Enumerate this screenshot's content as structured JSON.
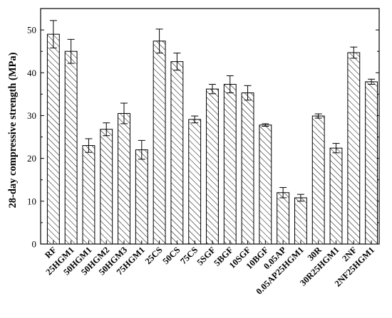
{
  "chart_data": {
    "type": "bar",
    "title": "",
    "xlabel": "",
    "ylabel": "28-day compressive strength (MPa)",
    "ylim": [
      0,
      55
    ],
    "yticks": [
      0,
      10,
      20,
      30,
      40,
      50
    ],
    "grid": false,
    "legend": "none",
    "bar_fill": "hatched-diagonal",
    "bar_color": "#ffffff",
    "edge_color": "#000000",
    "categories": [
      "RF",
      "25HGM1",
      "50HGM1",
      "50HGM2",
      "50HGM3",
      "75HGM1",
      "25CS",
      "50CS",
      "75CS",
      "5SGF",
      "5BGF",
      "10SGF",
      "10BGF",
      "0.05AP",
      "0.05AP25HGM1",
      "30R",
      "30R25HGM1",
      "2NF",
      "2NF25HGM1"
    ],
    "values": [
      49.0,
      45.0,
      23.0,
      26.8,
      30.5,
      22.0,
      47.4,
      42.6,
      29.1,
      36.2,
      37.3,
      35.3,
      27.8,
      12.0,
      10.8,
      29.9,
      22.4,
      44.7,
      37.9
    ],
    "errors": [
      3.2,
      2.8,
      1.6,
      1.5,
      2.4,
      2.2,
      2.8,
      2.0,
      0.8,
      1.1,
      2.0,
      1.7,
      0.3,
      1.2,
      0.8,
      0.5,
      1.1,
      1.3,
      0.6
    ]
  }
}
